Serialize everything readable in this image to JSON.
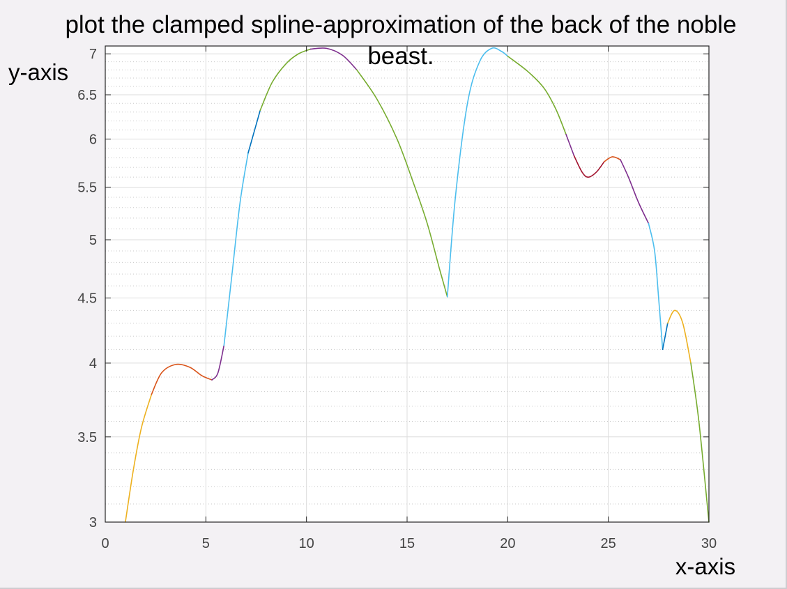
{
  "chart_data": {
    "type": "line",
    "title_lines": [
      "plot the clamped  spline-approximation of the back of the noble",
      "beast."
    ],
    "xlabel": "x-axis",
    "ylabel": "y-axis",
    "xlim": [
      0,
      30
    ],
    "ylim": [
      3,
      7.1
    ],
    "y_scale": "log",
    "xticks": [
      0,
      5,
      10,
      15,
      20,
      25,
      30
    ],
    "xtick_labels": [
      "0",
      "5",
      "10",
      "15",
      "20",
      "25",
      "30"
    ],
    "yticks": [
      3,
      3.5,
      4,
      4.5,
      5,
      5.5,
      6,
      6.5,
      7
    ],
    "ytick_labels": [
      "3",
      "3.5",
      "4",
      "4.5",
      "5",
      "5.5",
      "6",
      "6.5",
      "7"
    ],
    "ytick_minor": [
      3.1,
      3.2,
      3.3,
      3.4,
      3.6,
      3.7,
      3.8,
      3.9,
      4.1,
      4.2,
      4.3,
      4.4,
      4.6,
      4.7,
      4.8,
      4.9,
      5.1,
      5.2,
      5.3,
      5.4,
      5.6,
      5.7,
      5.8,
      5.9,
      6.1,
      6.2,
      6.3,
      6.4,
      6.6,
      6.7,
      6.8,
      6.9
    ],
    "grid": true,
    "series": [
      {
        "color": "#EDB120",
        "points": [
          [
            1.0,
            3.0
          ],
          [
            1.4,
            3.3
          ],
          [
            1.8,
            3.56
          ],
          [
            2.3,
            3.78
          ]
        ]
      },
      {
        "color": "#D95319",
        "points": [
          [
            2.3,
            3.78
          ],
          [
            2.8,
            3.93
          ],
          [
            3.5,
            3.99
          ],
          [
            4.2,
            3.97
          ],
          [
            4.8,
            3.91
          ],
          [
            5.3,
            3.88
          ]
        ]
      },
      {
        "color": "#7E2F8E",
        "points": [
          [
            5.3,
            3.88
          ],
          [
            5.6,
            3.93
          ],
          [
            5.9,
            4.13
          ]
        ]
      },
      {
        "color": "#4DBEEE",
        "points": [
          [
            5.9,
            4.13
          ],
          [
            6.3,
            4.7
          ],
          [
            6.7,
            5.35
          ],
          [
            7.1,
            5.85
          ]
        ]
      },
      {
        "color": "#0072BD",
        "points": [
          [
            7.1,
            5.85
          ],
          [
            7.4,
            6.08
          ],
          [
            7.7,
            6.32
          ]
        ]
      },
      {
        "color": "#77AC30",
        "points": [
          [
            7.7,
            6.32
          ],
          [
            8.3,
            6.65
          ],
          [
            9.0,
            6.88
          ],
          [
            9.6,
            7.0
          ],
          [
            10.2,
            7.06
          ]
        ]
      },
      {
        "color": "#7E2F8E",
        "points": [
          [
            10.2,
            7.06
          ],
          [
            11.0,
            7.07
          ],
          [
            11.8,
            6.98
          ],
          [
            12.5,
            6.8
          ]
        ]
      },
      {
        "color": "#77AC30",
        "points": [
          [
            12.5,
            6.8
          ],
          [
            13.5,
            6.45
          ],
          [
            14.5,
            6.0
          ],
          [
            15.3,
            5.55
          ],
          [
            16.0,
            5.15
          ],
          [
            16.6,
            4.75
          ],
          [
            17.0,
            4.51
          ]
        ]
      },
      {
        "color": "#4DBEEE",
        "points": [
          [
            17.0,
            4.51
          ],
          [
            17.4,
            5.4
          ],
          [
            18.0,
            6.4
          ],
          [
            18.6,
            6.9
          ],
          [
            19.2,
            7.07
          ],
          [
            19.7,
            7.03
          ],
          [
            20.0,
            6.97
          ]
        ]
      },
      {
        "color": "#77AC30",
        "points": [
          [
            20.0,
            6.97
          ],
          [
            21.0,
            6.78
          ],
          [
            21.8,
            6.58
          ],
          [
            22.4,
            6.33
          ],
          [
            22.9,
            6.05
          ]
        ]
      },
      {
        "color": "#7E2F8E",
        "points": [
          [
            22.9,
            6.05
          ],
          [
            23.3,
            5.82
          ]
        ]
      },
      {
        "color": "#A2142F",
        "points": [
          [
            23.3,
            5.82
          ],
          [
            23.7,
            5.65
          ],
          [
            24.0,
            5.6
          ],
          [
            24.4,
            5.65
          ],
          [
            24.8,
            5.76
          ]
        ]
      },
      {
        "color": "#D95319",
        "points": [
          [
            24.8,
            5.76
          ],
          [
            25.2,
            5.81
          ],
          [
            25.6,
            5.78
          ]
        ]
      },
      {
        "color": "#7E2F8E",
        "points": [
          [
            25.6,
            5.78
          ],
          [
            26.0,
            5.6
          ],
          [
            26.5,
            5.35
          ],
          [
            27.0,
            5.15
          ]
        ]
      },
      {
        "color": "#4DBEEE",
        "points": [
          [
            27.0,
            5.15
          ],
          [
            27.3,
            4.9
          ],
          [
            27.5,
            4.5
          ],
          [
            27.7,
            4.1
          ]
        ]
      },
      {
        "color": "#0072BD",
        "points": [
          [
            27.7,
            4.1
          ],
          [
            27.95,
            4.3
          ]
        ]
      },
      {
        "color": "#EDB120",
        "points": [
          [
            27.95,
            4.3
          ],
          [
            28.3,
            4.4
          ],
          [
            28.7,
            4.3
          ],
          [
            29.1,
            4.0
          ]
        ]
      },
      {
        "color": "#77AC30",
        "points": [
          [
            29.1,
            4.0
          ],
          [
            29.5,
            3.6
          ],
          [
            30.0,
            3.0
          ]
        ]
      }
    ]
  }
}
